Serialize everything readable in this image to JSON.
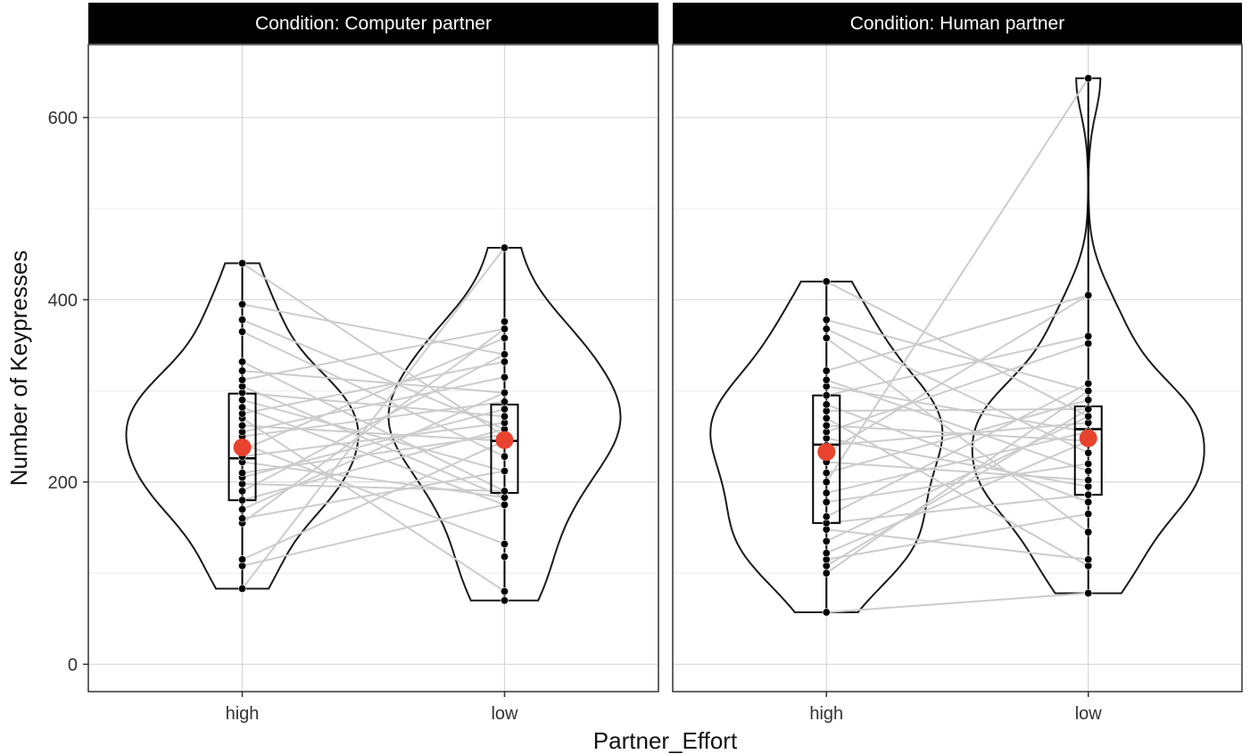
{
  "chart_data": {
    "type": "violin",
    "xlabel": "Partner_Effort",
    "ylabel": "Number of Keypresses",
    "ylim": [
      -30,
      680
    ],
    "yticks": [
      0,
      200,
      400,
      600
    ],
    "categories": [
      "high",
      "low"
    ],
    "grid": true,
    "colors": {
      "mean_point": "#e8432e",
      "pair_line": "#cccccc",
      "point": "#000000",
      "strip_bg": "#000000"
    },
    "panels": [
      {
        "title": "Condition: Computer partner",
        "groups": [
          {
            "category": "high",
            "min": 83,
            "max": 440,
            "q1": 180,
            "median": 226,
            "q3": 297,
            "mean": 238,
            "points": [
              83,
              108,
              115,
              155,
              160,
              170,
              180,
              190,
              198,
              205,
              210,
              222,
              228,
              235,
              242,
              250,
              255,
              262,
              270,
              275,
              282,
              290,
              298,
              305,
              312,
              322,
              332,
              365,
              378,
              395,
              440
            ]
          },
          {
            "category": "low",
            "min": 70,
            "max": 457,
            "q1": 188,
            "median": 245,
            "q3": 285,
            "mean": 246,
            "points": [
              70,
              80,
              118,
              132,
              175,
              183,
              190,
              212,
              228,
              245,
              252,
              258,
              265,
              272,
              280,
              288,
              298,
              315,
              332,
              340,
              358,
              368,
              376,
              457
            ]
          }
        ],
        "pairs": [
          [
            440,
            250
          ],
          [
            395,
            340
          ],
          [
            378,
            258
          ],
          [
            365,
            228
          ],
          [
            332,
            190
          ],
          [
            322,
            298
          ],
          [
            312,
            368
          ],
          [
            305,
            183
          ],
          [
            298,
            272
          ],
          [
            290,
            212
          ],
          [
            282,
            175
          ],
          [
            275,
            332
          ],
          [
            270,
            80
          ],
          [
            262,
            245
          ],
          [
            255,
            315
          ],
          [
            250,
            288
          ],
          [
            242,
            132
          ],
          [
            235,
            358
          ],
          [
            228,
            265
          ],
          [
            222,
            183
          ],
          [
            210,
            252
          ],
          [
            205,
            280
          ],
          [
            198,
            190
          ],
          [
            190,
            340
          ],
          [
            180,
            258
          ],
          [
            170,
            298
          ],
          [
            160,
            212
          ],
          [
            155,
            368
          ],
          [
            115,
            245
          ],
          [
            108,
            175
          ],
          [
            83,
            457
          ]
        ]
      },
      {
        "title": "Condition: Human partner",
        "groups": [
          {
            "category": "high",
            "min": 57,
            "max": 420,
            "q1": 155,
            "median": 241,
            "q3": 295,
            "mean": 233,
            "points": [
              57,
              100,
              108,
              115,
              122,
              135,
              148,
              155,
              162,
              178,
              188,
              200,
              210,
              222,
              232,
              240,
              248,
              255,
              262,
              270,
              278,
              285,
              295,
              305,
              312,
              322,
              358,
              368,
              378,
              420
            ]
          },
          {
            "category": "low",
            "min": 78,
            "max": 643,
            "q1": 186,
            "median": 258,
            "q3": 283,
            "mean": 248,
            "points": [
              78,
              108,
              115,
              145,
              165,
              178,
              186,
              195,
              202,
              212,
              220,
              232,
              245,
              255,
              265,
              272,
              280,
              290,
              300,
              308,
              352,
              360,
              405,
              643
            ]
          }
        ],
        "pairs": [
          [
            420,
            272
          ],
          [
            378,
            300
          ],
          [
            368,
            232
          ],
          [
            358,
            145
          ],
          [
            322,
            405
          ],
          [
            312,
            212
          ],
          [
            305,
            255
          ],
          [
            295,
            360
          ],
          [
            285,
            178
          ],
          [
            278,
            280
          ],
          [
            270,
            108
          ],
          [
            262,
            245
          ],
          [
            255,
            352
          ],
          [
            248,
            195
          ],
          [
            240,
            265
          ],
          [
            232,
            405
          ],
          [
            222,
            202
          ],
          [
            210,
            290
          ],
          [
            200,
            643
          ],
          [
            188,
            255
          ],
          [
            178,
            220
          ],
          [
            162,
            308
          ],
          [
            155,
            186
          ],
          [
            148,
            115
          ],
          [
            135,
            272
          ],
          [
            122,
            245
          ],
          [
            115,
            165
          ],
          [
            108,
            280
          ],
          [
            100,
            300
          ],
          [
            57,
            78
          ]
        ]
      }
    ]
  }
}
